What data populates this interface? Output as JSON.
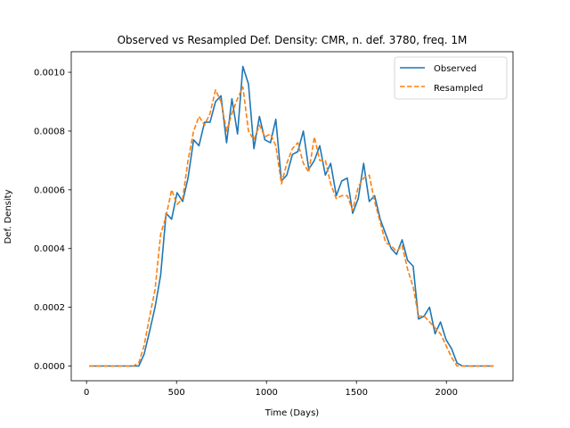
{
  "chart_data": {
    "type": "line",
    "title": "Observed vs Resampled Def. Density: CMR, n. def. 3780, freq. 1M",
    "xlabel": "Time (Days)",
    "ylabel": "Def. Density",
    "xlim": [
      -85,
      2370
    ],
    "ylim": [
      -5e-05,
      0.00107
    ],
    "xticks": [
      0,
      500,
      1000,
      1500,
      2000
    ],
    "yticks": [
      0.0,
      0.0002,
      0.0004,
      0.0006,
      0.0008,
      0.001
    ],
    "ytick_labels": [
      "0.0000",
      "0.0002",
      "0.0004",
      "0.0006",
      "0.0008",
      "0.0010"
    ],
    "legend_position": "upper right",
    "series": [
      {
        "name": "Observed",
        "color": "#1f77b4",
        "style": "solid",
        "x": [
          15,
          45,
          76,
          106,
          137,
          168,
          198,
          229,
          259,
          290,
          320,
          351,
          381,
          412,
          442,
          473,
          503,
          534,
          564,
          595,
          625,
          656,
          686,
          717,
          747,
          778,
          808,
          839,
          869,
          900,
          930,
          961,
          991,
          1022,
          1052,
          1083,
          1113,
          1144,
          1174,
          1205,
          1235,
          1266,
          1296,
          1327,
          1357,
          1388,
          1418,
          1449,
          1479,
          1510,
          1540,
          1571,
          1601,
          1632,
          1662,
          1693,
          1723,
          1754,
          1784,
          1815,
          1845,
          1876,
          1906,
          1937,
          1967,
          1998,
          2028,
          2059,
          2089,
          2120,
          2150,
          2181,
          2211,
          2242,
          2262
        ],
        "y": [
          0.0,
          0.0,
          0.0,
          0.0,
          0.0,
          0.0,
          0.0,
          0.0,
          0.0,
          0.0,
          4e-05,
          0.00012,
          0.0002,
          0.00031,
          0.00052,
          0.0005,
          0.00059,
          0.00056,
          0.00064,
          0.00077,
          0.00075,
          0.00083,
          0.00083,
          0.0009,
          0.00092,
          0.00076,
          0.00091,
          0.00079,
          0.00102,
          0.00096,
          0.00074,
          0.00085,
          0.00077,
          0.00076,
          0.00084,
          0.00063,
          0.00065,
          0.00072,
          0.00073,
          0.0008,
          0.00067,
          0.0007,
          0.00075,
          0.00065,
          0.00069,
          0.00058,
          0.00063,
          0.00064,
          0.00052,
          0.00057,
          0.00069,
          0.00056,
          0.00058,
          0.0005,
          0.00045,
          0.0004,
          0.00038,
          0.00043,
          0.00036,
          0.00034,
          0.00016,
          0.00017,
          0.0002,
          0.00011,
          0.00015,
          9e-05,
          6e-05,
          1e-05,
          0.0,
          0.0,
          0.0,
          0.0,
          0.0,
          0.0,
          0.0
        ]
      },
      {
        "name": "Resampled",
        "color": "#ff7f0e",
        "style": "dashed",
        "x": [
          15,
          45,
          76,
          106,
          137,
          168,
          198,
          229,
          259,
          290,
          320,
          351,
          381,
          412,
          442,
          473,
          503,
          534,
          564,
          595,
          625,
          656,
          686,
          717,
          747,
          778,
          808,
          839,
          869,
          900,
          930,
          961,
          991,
          1022,
          1052,
          1083,
          1113,
          1144,
          1174,
          1205,
          1235,
          1266,
          1296,
          1327,
          1357,
          1388,
          1418,
          1449,
          1479,
          1510,
          1540,
          1571,
          1601,
          1632,
          1662,
          1693,
          1723,
          1754,
          1784,
          1815,
          1845,
          1876,
          1906,
          1937,
          1967,
          1998,
          2028,
          2059,
          2089,
          2120,
          2150,
          2181,
          2211,
          2242,
          2262
        ],
        "y": [
          0.0,
          0.0,
          0.0,
          0.0,
          0.0,
          0.0,
          0.0,
          0.0,
          0.0,
          1e-05,
          7e-05,
          0.00017,
          0.00026,
          0.00045,
          0.00051,
          0.0006,
          0.00055,
          0.00057,
          0.0007,
          0.0008,
          0.00085,
          0.00082,
          0.00086,
          0.00094,
          0.0009,
          0.0008,
          0.00086,
          0.00091,
          0.00095,
          0.0008,
          0.00077,
          0.00082,
          0.00078,
          0.00079,
          0.00075,
          0.00062,
          0.00069,
          0.00074,
          0.00076,
          0.00069,
          0.00066,
          0.00078,
          0.0007,
          0.0007,
          0.00062,
          0.00057,
          0.00058,
          0.00058,
          0.00053,
          0.00061,
          0.00064,
          0.00065,
          0.00056,
          0.00049,
          0.00042,
          0.00041,
          0.00039,
          0.00041,
          0.00033,
          0.00027,
          0.00017,
          0.00017,
          0.00015,
          0.00013,
          0.00011,
          7e-05,
          3e-05,
          0.0,
          0.0,
          0.0,
          0.0,
          0.0,
          0.0,
          0.0,
          0.0
        ]
      }
    ]
  }
}
